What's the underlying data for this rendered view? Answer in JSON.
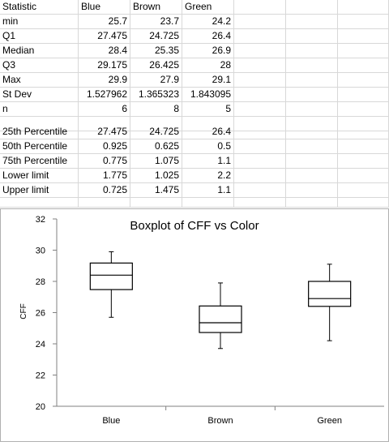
{
  "sheet": {
    "header": [
      "Statistic",
      "Blue",
      "Brown",
      "Green"
    ],
    "rows1": [
      [
        "min",
        "25.7",
        "23.7",
        "24.2"
      ],
      [
        "Q1",
        "27.475",
        "24.725",
        "26.4"
      ],
      [
        "Median",
        "28.4",
        "25.35",
        "26.9"
      ],
      [
        "Q3",
        "29.175",
        "26.425",
        "28"
      ],
      [
        "Max",
        "29.9",
        "27.9",
        "29.1"
      ],
      [
        "St Dev",
        "1.527962",
        "1.365323",
        "1.843095"
      ],
      [
        "n",
        "6",
        "8",
        "5"
      ]
    ],
    "rows2": [
      [
        "25th Percentile",
        "27.475",
        "24.725",
        "26.4"
      ],
      [
        "50th Percentile",
        "0.925",
        "0.625",
        "0.5"
      ],
      [
        "75th Percentile",
        "0.775",
        "1.075",
        "1.1"
      ],
      [
        "Lower limit",
        "1.775",
        "1.025",
        "2.2"
      ],
      [
        "Upper limit",
        "0.725",
        "1.475",
        "1.1"
      ]
    ]
  },
  "chart_data": {
    "type": "boxplot",
    "title": "Boxplot of CFF vs Color",
    "ylabel": "CFF",
    "xlabel": "",
    "ylim": [
      20,
      32
    ],
    "yticks": [
      20,
      22,
      24,
      26,
      28,
      30,
      32
    ],
    "categories": [
      "Blue",
      "Brown",
      "Green"
    ],
    "boxes": [
      {
        "category": "Blue",
        "min": 25.7,
        "q1": 27.475,
        "median": 28.4,
        "q3": 29.175,
        "max": 29.9
      },
      {
        "category": "Brown",
        "min": 23.7,
        "q1": 24.725,
        "median": 25.35,
        "q3": 26.425,
        "max": 27.9
      },
      {
        "category": "Green",
        "min": 24.2,
        "q1": 26.4,
        "median": 26.9,
        "q3": 28,
        "max": 29.1
      }
    ],
    "grid": false,
    "legend": "none"
  }
}
